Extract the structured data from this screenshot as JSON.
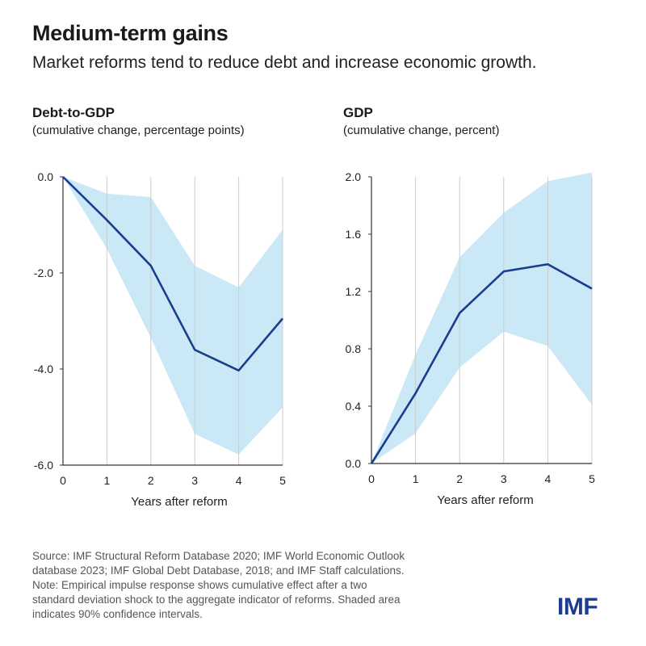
{
  "title": "Medium-term gains",
  "subtitle": "Market reforms tend to reduce debt and increase economic growth.",
  "colors": {
    "line": "#1a3d8f",
    "band": "#cbe8f6",
    "grid": "#cccccc",
    "axis": "#333333",
    "logo": "#1a3d8f"
  },
  "chart_data": [
    {
      "type": "line",
      "title": "Debt-to-GDP",
      "subtitle": "(cumulative change, percentage points)",
      "xlabel": "Years after reform",
      "x": [
        0,
        1,
        2,
        3,
        4,
        5
      ],
      "xticks": [
        "0",
        "1",
        "2",
        "3",
        "4",
        "5"
      ],
      "ylim": [
        -6.0,
        0.0
      ],
      "yticks": [
        0.0,
        -2.0,
        -4.0,
        -6.0
      ],
      "ytick_labels": [
        "0.0",
        "-2.0",
        "-4.0",
        "-6.0"
      ],
      "series": [
        {
          "values": [
            0.0,
            -0.9,
            -1.85,
            -3.6,
            -4.03,
            -2.95
          ]
        }
      ],
      "band_upper": [
        0.0,
        -0.35,
        -0.42,
        -1.85,
        -2.3,
        -1.1
      ],
      "band_lower": [
        0.0,
        -1.5,
        -3.35,
        -5.35,
        -5.78,
        -4.8
      ],
      "grid": "vertical"
    },
    {
      "type": "line",
      "title": "GDP",
      "subtitle": "(cumulative change, percent)",
      "xlabel": "Years after reform",
      "x": [
        0,
        1,
        2,
        3,
        4,
        5
      ],
      "xticks": [
        "0",
        "1",
        "2",
        "3",
        "4",
        "5"
      ],
      "ylim": [
        0.0,
        2.0
      ],
      "yticks": [
        2.0,
        1.6,
        1.2,
        0.8,
        0.4,
        0.0
      ],
      "ytick_labels": [
        "2.0",
        "1.6",
        "1.2",
        "0.8",
        "0.4",
        "0.0"
      ],
      "series": [
        {
          "values": [
            0.0,
            0.49,
            1.05,
            1.34,
            1.39,
            1.22
          ]
        }
      ],
      "band_upper": [
        0.0,
        0.76,
        1.44,
        1.75,
        1.97,
        2.03
      ],
      "band_lower": [
        0.0,
        0.21,
        0.67,
        0.92,
        0.82,
        0.41
      ],
      "grid": "vertical"
    }
  ],
  "footnote": {
    "line1": "Source: IMF Structural Reform Database 2020; IMF World Economic Outlook",
    "line2": "database 2023; IMF Global Debt Database, 2018; and IMF Staff calculations.",
    "line3": "Note: Empirical impulse response shows cumulative effect after a two",
    "line4": "standard deviation shock to the aggregate indicator of reforms. Shaded area",
    "line5": "indicates 90% confidence intervals."
  },
  "logo": "IMF"
}
